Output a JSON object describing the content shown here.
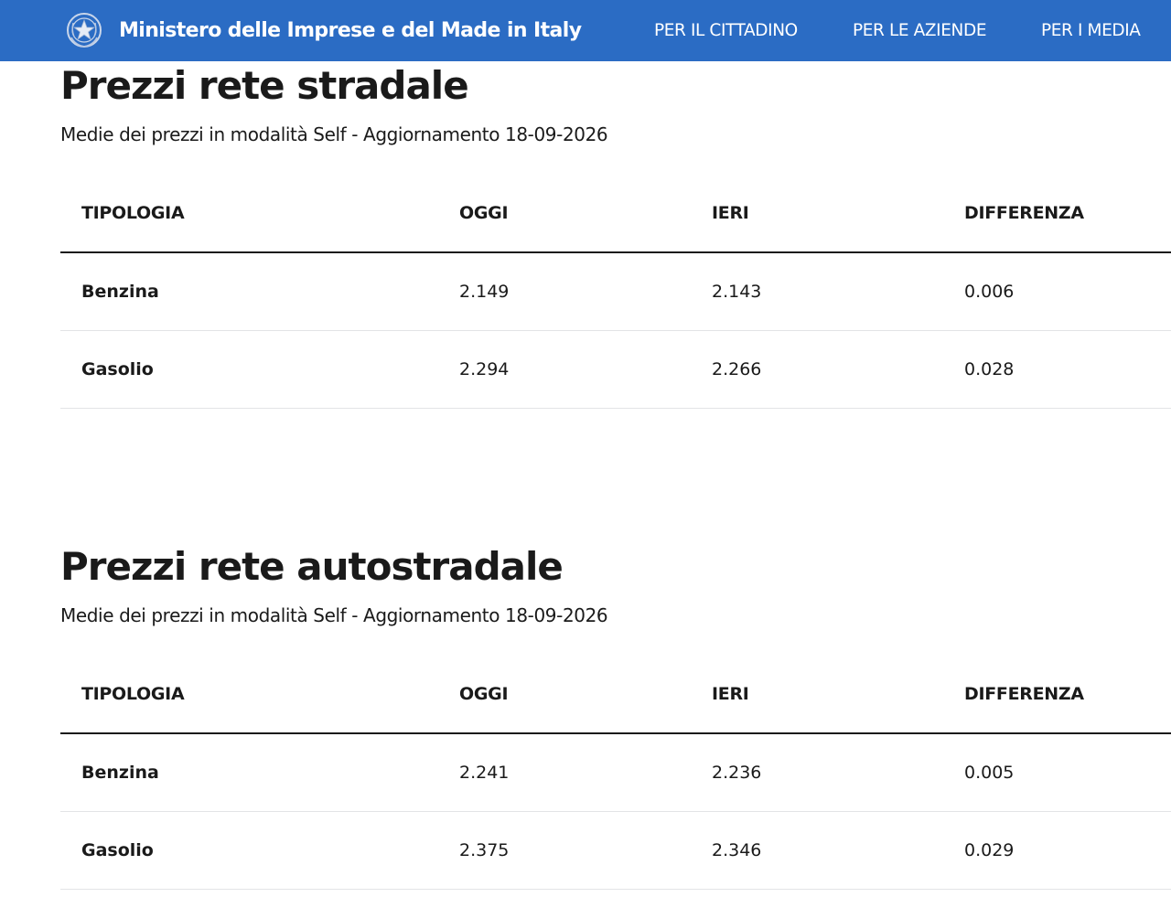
{
  "header": {
    "site_title": "Ministero delle Imprese e del Made in Italy",
    "nav": [
      {
        "label": "PER IL CITTADINO"
      },
      {
        "label": "PER LE AZIENDE"
      },
      {
        "label": "PER I MEDIA"
      }
    ],
    "background_color": "#2b6cc4"
  },
  "sections": [
    {
      "title": "Prezzi rete stradale",
      "subtitle": "Medie dei prezzi in modalità Self - Aggiornamento 18-09-2026",
      "columns": [
        "TIPOLOGIA",
        "OGGI",
        "IERI",
        "DIFFERENZA"
      ],
      "rows": [
        {
          "tipologia": "Benzina",
          "oggi": "2.149",
          "ieri": "2.143",
          "differenza": "0.006"
        },
        {
          "tipologia": "Gasolio",
          "oggi": "2.294",
          "ieri": "2.266",
          "differenza": "0.028"
        }
      ]
    },
    {
      "title": "Prezzi rete autostradale",
      "subtitle": "Medie dei prezzi in modalità Self - Aggiornamento 18-09-2026",
      "columns": [
        "TIPOLOGIA",
        "OGGI",
        "IERI",
        "DIFFERENZA"
      ],
      "rows": [
        {
          "tipologia": "Benzina",
          "oggi": "2.241",
          "ieri": "2.236",
          "differenza": "0.005"
        },
        {
          "tipologia": "Gasolio",
          "oggi": "2.375",
          "ieri": "2.346",
          "differenza": "0.029"
        }
      ]
    }
  ],
  "icons": {
    "logo": "italian-republic-emblem-icon"
  }
}
